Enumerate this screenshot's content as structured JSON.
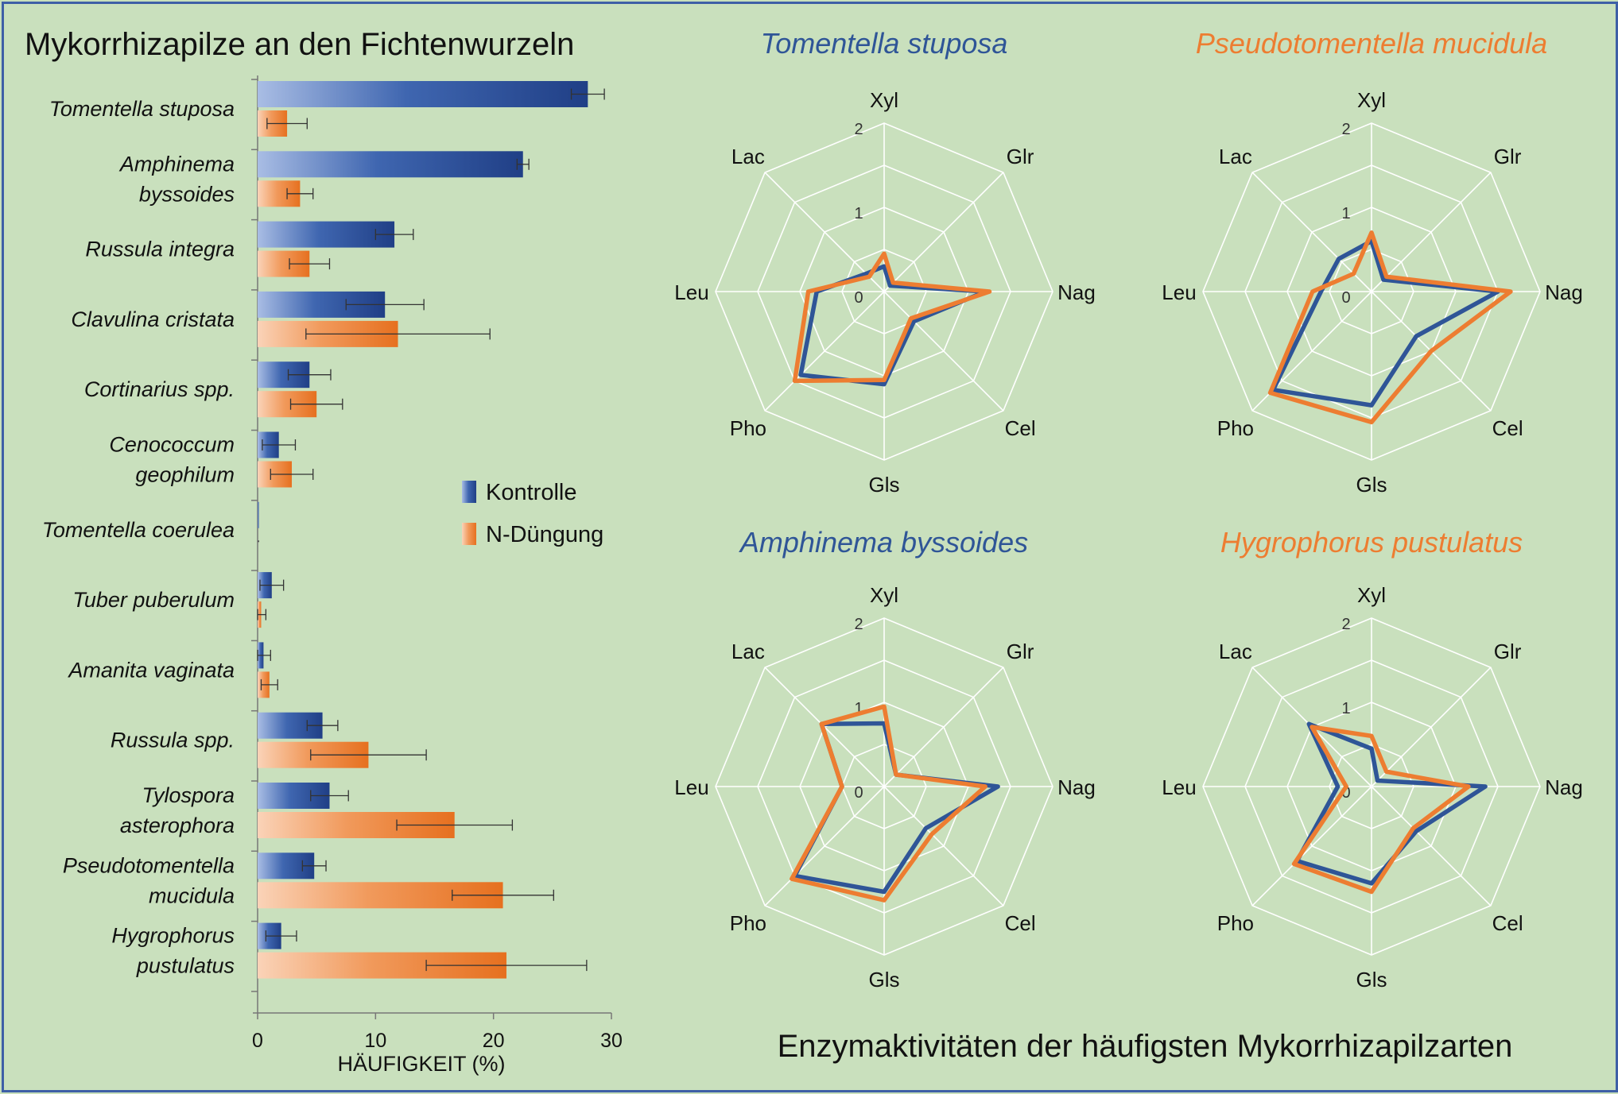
{
  "bar_chart": {
    "title": "Mykorrhizapilze an den Fichtenwurzeln",
    "xlabel": "HÄUFIGKEIT (%)",
    "legend": {
      "kontrolle": "Kontrolle",
      "ndung": "N-Düngung"
    }
  },
  "radar_section_title": "Enzymaktivitäten der häufigsten Mykorrhizapilzarten",
  "colors": {
    "background": "#c9e0bd",
    "kontrolle": "#2f5597",
    "ndung": "#ed7d31",
    "kontrolle_title": "#2f5597",
    "ndung_title": "#ed7d31"
  },
  "chart_data": [
    {
      "type": "bar",
      "orientation": "horizontal",
      "title": "Mykorrhizapilze an den Fichtenwurzeln",
      "xlabel": "HÄUFIGKEIT (%)",
      "xlim": [
        0,
        30
      ],
      "xticks": [
        "0",
        "10",
        "20",
        "30"
      ],
      "legend_position": "right-middle",
      "categories": [
        [
          "Tomentella stuposa"
        ],
        [
          "Amphinema",
          "byssoides"
        ],
        [
          "Russula integra"
        ],
        [
          "Clavulina cristata"
        ],
        [
          "Cortinarius spp."
        ],
        [
          "Cenococcum",
          "geophilum"
        ],
        [
          "Tomentella coerulea"
        ],
        [
          "Tuber puberulum"
        ],
        [
          "Amanita vaginata"
        ],
        [
          "Russula spp."
        ],
        [
          "Tylospora",
          "asterophora"
        ],
        [
          "Pseudotomentella",
          "mucidula"
        ],
        [
          "Hygrophorus",
          "pustulatus"
        ]
      ],
      "series": [
        {
          "name": "Kontrolle",
          "values": [
            28,
            22.5,
            11.6,
            10.8,
            4.4,
            1.8,
            0.1,
            1.2,
            0.5,
            5.5,
            6.1,
            4.8,
            2.0
          ],
          "errors": [
            1.4,
            0.5,
            1.6,
            3.3,
            1.8,
            1.4,
            0,
            1.0,
            0.6,
            1.3,
            1.6,
            1.0,
            1.3
          ]
        },
        {
          "name": "N-Düngung",
          "values": [
            2.5,
            3.6,
            4.4,
            11.9,
            5.0,
            2.9,
            0,
            0.3,
            1.0,
            9.4,
            16.7,
            20.8,
            21.1
          ],
          "errors": [
            1.7,
            1.1,
            1.7,
            7.8,
            2.2,
            1.8,
            0,
            0.4,
            0.7,
            4.9,
            4.9,
            4.3,
            6.8
          ]
        }
      ]
    },
    {
      "type": "radar",
      "title": "Tomentella stuposa",
      "title_color": "kontrolle",
      "axes": [
        "Xyl",
        "Glr",
        "Nag",
        "Cel",
        "Gls",
        "Pho",
        "Leu",
        "Lac"
      ],
      "rlim": [
        0,
        2
      ],
      "rticks": [
        "0",
        "1",
        "2"
      ],
      "series": [
        {
          "name": "Kontrolle",
          "values": [
            0.3,
            0.1,
            1.2,
            0.5,
            1.1,
            1.4,
            0.8,
            0.3
          ]
        },
        {
          "name": "N-Düngung",
          "values": [
            0.45,
            0.15,
            1.25,
            0.45,
            1.05,
            1.5,
            0.9,
            0.25
          ]
        }
      ]
    },
    {
      "type": "radar",
      "title": "Pseudotomentella mucidula",
      "title_color": "ndung",
      "axes": [
        "Xyl",
        "Glr",
        "Nag",
        "Cel",
        "Gls",
        "Pho",
        "Leu",
        "Lac"
      ],
      "rlim": [
        0,
        2
      ],
      "rticks": [
        "0",
        "1",
        "2"
      ],
      "series": [
        {
          "name": "Kontrolle",
          "values": [
            0.6,
            0.2,
            1.5,
            0.75,
            1.35,
            1.65,
            0.6,
            0.55
          ]
        },
        {
          "name": "N-Düngung",
          "values": [
            0.7,
            0.25,
            1.65,
            1.0,
            1.55,
            1.7,
            0.7,
            0.3
          ]
        }
      ]
    },
    {
      "type": "radar",
      "title": "Amphinema byssoides",
      "title_color": "kontrolle",
      "axes": [
        "Xyl",
        "Glr",
        "Nag",
        "Cel",
        "Gls",
        "Pho",
        "Leu",
        "Lac"
      ],
      "rlim": [
        0,
        2
      ],
      "rticks": [
        "0",
        "1",
        "2"
      ],
      "series": [
        {
          "name": "Kontrolle",
          "values": [
            0.75,
            0.2,
            1.35,
            0.7,
            1.25,
            1.5,
            0.5,
            1.05
          ]
        },
        {
          "name": "N-Düngung",
          "values": [
            0.95,
            0.2,
            1.2,
            0.8,
            1.35,
            1.55,
            0.5,
            1.05
          ]
        }
      ]
    },
    {
      "type": "radar",
      "title": "Hygrophorus pustulatus",
      "title_color": "ndung",
      "axes": [
        "Xyl",
        "Glr",
        "Nag",
        "Cel",
        "Gls",
        "Pho",
        "Leu",
        "Lac"
      ],
      "rlim": [
        0,
        2
      ],
      "rticks": [
        "0",
        "1",
        "2"
      ],
      "series": [
        {
          "name": "Kontrolle",
          "values": [
            0.45,
            0.1,
            1.35,
            0.75,
            1.15,
            1.25,
            0.4,
            1.05
          ]
        },
        {
          "name": "N-Düngung",
          "values": [
            0.6,
            0.25,
            1.15,
            0.7,
            1.25,
            1.3,
            0.3,
            1.0
          ]
        }
      ]
    }
  ]
}
